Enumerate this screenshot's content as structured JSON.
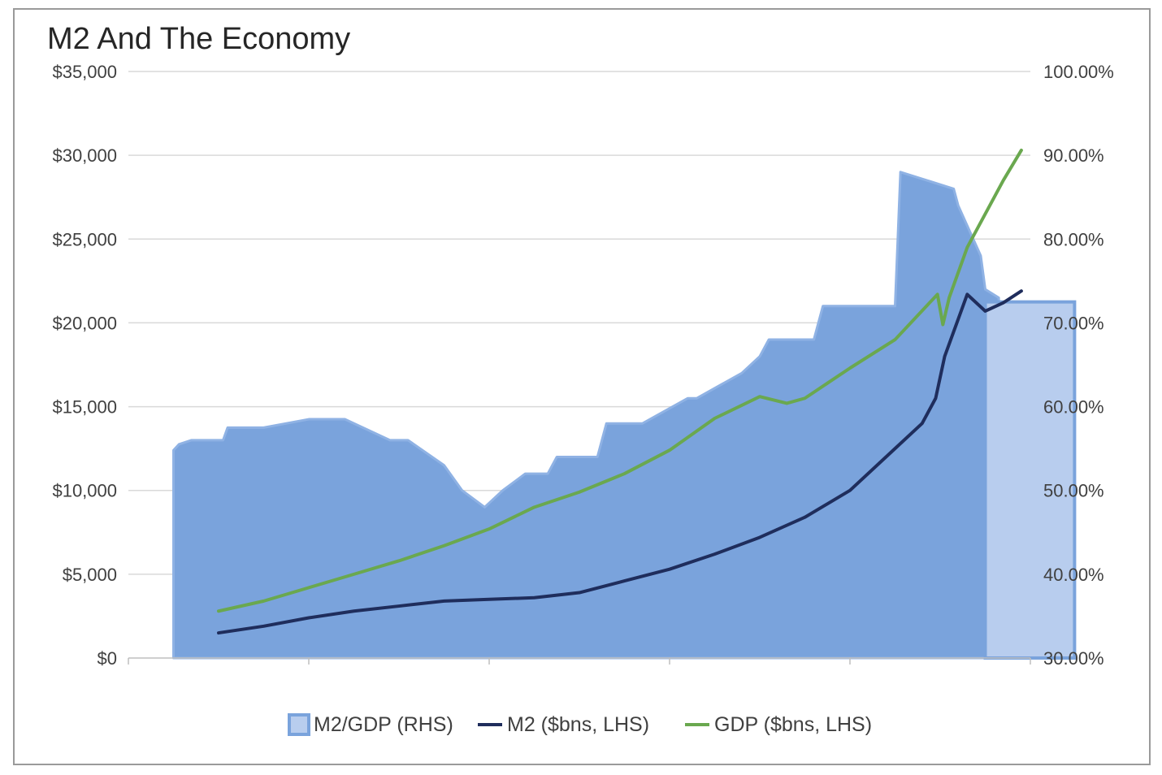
{
  "chart_data": {
    "type": "line",
    "title": "M2 And The Economy",
    "xlabel": "",
    "ylabel": "",
    "x_tick_labels": [],
    "y_left": {
      "ticks": [
        0,
        5000,
        10000,
        15000,
        20000,
        25000,
        30000,
        35000
      ],
      "tick_labels": [
        "$0",
        "$5,000",
        "$10,000",
        "$15,000",
        "$20,000",
        "$25,000",
        "$30,000",
        "$35,000"
      ],
      "ylim": [
        0,
        35000
      ]
    },
    "y_right": {
      "ticks": [
        30,
        40,
        50,
        60,
        70,
        80,
        90,
        100
      ],
      "tick_labels": [
        "30.00%",
        "40.00%",
        "50.00%",
        "60.00%",
        "70.00%",
        "80.00%",
        "90.00%",
        "100.00%"
      ],
      "ylim": [
        30,
        100
      ]
    },
    "grid": true,
    "legend": "bottom",
    "x_range": [
      0,
      100
    ],
    "series": [
      {
        "name": "M2/GDP (RHS)",
        "kind": "area",
        "axis": "right",
        "color": "#7aa3dc",
        "x": [
          5.0,
          5.6,
          7.0,
          10.5,
          11.0,
          15.0,
          20.0,
          24.0,
          29.0,
          31.0,
          35.0,
          37.0,
          39.5,
          41.5,
          44.0,
          46.5,
          47.5,
          52.0,
          53.0,
          57.0,
          62.0,
          63.0,
          68.0,
          70.0,
          71.0,
          76.0,
          77.0,
          85.0,
          85.6,
          91.5,
          92.0,
          94.5,
          95.0,
          96.5
        ],
        "values": [
          54.8,
          55.5,
          56.0,
          56.0,
          57.5,
          57.5,
          58.5,
          58.5,
          56.0,
          56.0,
          53.0,
          50.0,
          48.0,
          50.0,
          52.0,
          52.0,
          54.0,
          54.0,
          58.0,
          58.0,
          61.0,
          61.0,
          64.0,
          66.0,
          68.0,
          68.0,
          72.0,
          72.0,
          88.0,
          86.0,
          84.0,
          78.0,
          74.0,
          73.0
        ]
      },
      {
        "name": "M2/GDP (RHS) latest",
        "kind": "bar",
        "axis": "right",
        "color": "#b8cdee",
        "x_range": [
          95.0,
          104.9
        ],
        "value": 72.5
      },
      {
        "name": "M2 ($bns, LHS)",
        "kind": "line",
        "axis": "left",
        "color": "#1f2d5c",
        "x": [
          10,
          15,
          20,
          25,
          30,
          35,
          40,
          45,
          50,
          55,
          60,
          65,
          70,
          75,
          80,
          85,
          88,
          89.5,
          90.5,
          93.0,
          95.0,
          97.0,
          99.0
        ],
        "values": [
          1500,
          1900,
          2400,
          2800,
          3100,
          3400,
          3500,
          3600,
          3900,
          4600,
          5300,
          6200,
          7200,
          8400,
          10000,
          12500,
          14000,
          15500,
          18000,
          21700,
          20700,
          21200,
          21900
        ]
      },
      {
        "name": "GDP ($bns, LHS)",
        "kind": "line",
        "axis": "left",
        "color": "#6aa84f",
        "x": [
          10,
          15,
          20,
          25,
          30,
          35,
          40,
          45,
          50,
          55,
          60,
          65,
          70,
          73,
          75,
          80,
          85,
          89.7,
          90.3,
          91.0,
          93.0,
          95.0,
          97.0,
          99.0
        ],
        "values": [
          2800,
          3400,
          4200,
          5000,
          5800,
          6700,
          7700,
          9000,
          9900,
          11000,
          12400,
          14300,
          15600,
          15200,
          15500,
          17300,
          19000,
          21700,
          19900,
          21500,
          24500,
          26500,
          28500,
          30300
        ]
      }
    ]
  },
  "legend": {
    "items": [
      {
        "label": "M2/GDP (RHS)",
        "swatch": "box",
        "color": "#7aa3dc"
      },
      {
        "label": "M2 ($bns, LHS)",
        "swatch": "line",
        "color": "#1f2d5c"
      },
      {
        "label": "GDP ($bns, LHS)",
        "swatch": "line",
        "color": "#6aa84f"
      }
    ]
  }
}
